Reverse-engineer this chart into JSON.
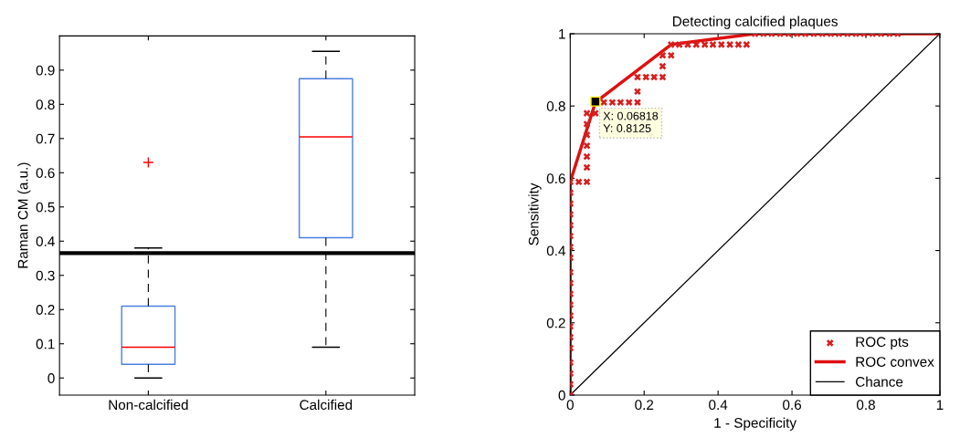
{
  "chart_data": [
    {
      "type": "box",
      "ylabel": "Raman CM (a.u.)",
      "categories": [
        "Non-calcified",
        "Calcified"
      ],
      "boxes": [
        {
          "low": 0,
          "q1": 0.04,
          "median": 0.09,
          "q3": 0.21,
          "high": 0.38,
          "outliers": [
            0.63
          ]
        },
        {
          "low": 0.09,
          "q1": 0.41,
          "median": 0.705,
          "q3": 0.875,
          "high": 0.955
        }
      ],
      "color": "#4a7fe0",
      "ylim": [
        -0.05,
        1.0
      ],
      "yticks": [
        0,
        0.1,
        0.2,
        0.3,
        0.4,
        0.5,
        0.6,
        0.7,
        0.8,
        0.9
      ],
      "ref_lines": [
        {
          "axis": "y",
          "value": 0.365,
          "color": "#000000"
        }
      ]
    },
    {
      "type": "scatter",
      "title": "Detecting calcified plaques",
      "xlabel": "1 - Specificity",
      "ylabel": "Sensitivity",
      "series": [
        {
          "name": "ROC pts",
          "type": "scatter",
          "color": "#d62020",
          "marker": "cross",
          "x": [
            0,
            0,
            0,
            0,
            0,
            0,
            0,
            0,
            0,
            0,
            0,
            0,
            0,
            0,
            0,
            0,
            0,
            0,
            0,
            0,
            0.023,
            0.045,
            0.045,
            0.045,
            0.045,
            0.045,
            0.045,
            0.045,
            0.068,
            0.091,
            0.114,
            0.136,
            0.159,
            0.182,
            0.182,
            0.182,
            0.205,
            0.227,
            0.25,
            0.25,
            0.25,
            0.273,
            0.273,
            0.295,
            0.318,
            0.341,
            0.364,
            0.386,
            0.409,
            0.432,
            0.455,
            0.477,
            0.5,
            0.523,
            0.545,
            0.568,
            0.591,
            0.614,
            0.636,
            0.659,
            0.682,
            0.705,
            0.727,
            0.75,
            0.773,
            0.795,
            0.818,
            0.841,
            0.864,
            0.886
          ],
          "values": [
            0,
            0.03,
            0.06,
            0.09,
            0.13,
            0.16,
            0.19,
            0.22,
            0.25,
            0.28,
            0.31,
            0.34,
            0.38,
            0.41,
            0.44,
            0.47,
            0.5,
            0.53,
            0.56,
            0.59,
            0.59,
            0.59,
            0.63,
            0.66,
            0.69,
            0.72,
            0.75,
            0.78,
            0.78,
            0.81,
            0.81,
            0.81,
            0.81,
            0.81,
            0.84,
            0.88,
            0.88,
            0.88,
            0.88,
            0.91,
            0.94,
            0.94,
            0.97,
            0.97,
            0.97,
            0.97,
            0.97,
            0.97,
            0.97,
            0.97,
            0.97,
            0.97,
            1,
            1,
            1,
            1,
            1,
            1,
            1,
            1,
            1,
            1,
            1,
            1,
            1,
            1,
            1,
            1,
            1,
            1
          ]
        },
        {
          "name": "ROC convex",
          "type": "line",
          "color": "#e01010",
          "x": [
            0,
            0,
            0.068,
            0.273,
            0.5,
            1
          ],
          "values": [
            0,
            0.59,
            0.81,
            0.97,
            1,
            1
          ]
        },
        {
          "name": "Chance",
          "type": "line",
          "color": "#000000",
          "x": [
            0,
            1
          ],
          "values": [
            0,
            1
          ]
        }
      ],
      "annotations": [
        {
          "text": "X: 0.06818\nY: 0.8125",
          "x": 0.06818,
          "y": 0.8125
        }
      ],
      "xlim": [
        0,
        1
      ],
      "ylim": [
        0,
        1
      ],
      "xticks": [
        0,
        0.2,
        0.4,
        0.6,
        0.8,
        1
      ],
      "yticks": [
        0,
        0.2,
        0.4,
        0.6,
        0.8,
        1
      ],
      "legend": "bottom right"
    }
  ]
}
